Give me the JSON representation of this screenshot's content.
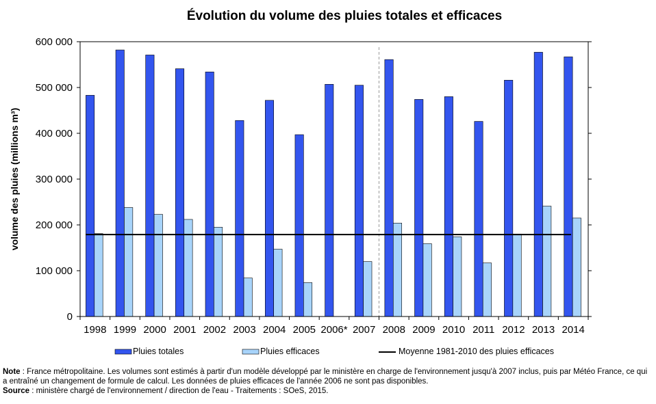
{
  "chart_data": {
    "type": "bar",
    "title": "Évolution du volume des pluies totales et efficaces",
    "ylabel": "volume des pluies (millions m³)",
    "xlabel": "",
    "ylim": [
      0,
      600000
    ],
    "yticks": [
      0,
      100000,
      200000,
      300000,
      400000,
      500000,
      600000
    ],
    "ytick_labels": [
      "0",
      "100 000",
      "200 000",
      "300 000",
      "400 000",
      "500 000",
      "600 000"
    ],
    "categories": [
      "1998",
      "1999",
      "2000",
      "2001",
      "2002",
      "2003",
      "2004",
      "2005",
      "2006*",
      "2007",
      "2008",
      "2009",
      "2010",
      "2011",
      "2012",
      "2013",
      "2014"
    ],
    "series": [
      {
        "name": "Pluies totales",
        "color": "#3355ee",
        "values": [
          483000,
          582000,
          571000,
          541000,
          534000,
          428000,
          472000,
          397000,
          507000,
          505000,
          561000,
          474000,
          480000,
          426000,
          516000,
          577000,
          567000
        ]
      },
      {
        "name": "Pluies efficaces",
        "color": "#a8d4fa",
        "values": [
          181000,
          238000,
          223000,
          212000,
          195000,
          84000,
          147000,
          74000,
          null,
          120000,
          204000,
          159000,
          174000,
          117000,
          180000,
          241000,
          215000
        ]
      }
    ],
    "reference_line": {
      "name": "Moyenne 1981-2010 des pluies efficaces",
      "value": 179000,
      "color": "#000000"
    },
    "break_after_category": "2007",
    "legend": [
      "Pluies totales",
      "Pluies efficaces",
      "Moyenne 1981-2010 des pluies efficaces"
    ],
    "legend_position": "bottom",
    "grid": false
  },
  "notes": {
    "note_label": "Note",
    "note_text": " : France métropolitaine. Les volumes sont estimés à partir d'un modèle développé par le ministère en charge de l'environnement jusqu'à 2007 inclus, puis par Météo France, ce qui a entraîné un changement de formule de calcul. Les données de pluies efficaces de l'année 2006 ne sont pas disponibles.",
    "source_label": "Source",
    "source_text": " : ministère chargé de l'environnement / direction de l'eau - Traitements : SOeS, 2015."
  }
}
